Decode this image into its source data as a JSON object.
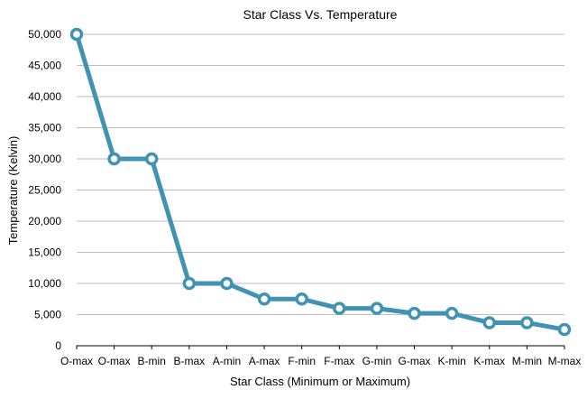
{
  "chart_data": {
    "type": "line",
    "title": "Star Class Vs. Temperature",
    "xlabel": "Star Class (Minimum or Maximum)",
    "ylabel": "Temperature (Kelvin)",
    "categories": [
      "O-max",
      "O-max",
      "B-min",
      "B-max",
      "A-min",
      "A-max",
      "F-min",
      "F-max",
      "G-min",
      "G-max",
      "K-min",
      "K-max",
      "M-min",
      "M-max"
    ],
    "series": [
      {
        "values": [
          50000,
          30000,
          30000,
          10000,
          10000,
          7500,
          7500,
          6000,
          6000,
          5200,
          5200,
          3700,
          3700,
          2600
        ],
        "color": "#4292b4"
      }
    ],
    "ylim": [
      0,
      50000
    ],
    "yticks": [
      0,
      5000,
      10000,
      15000,
      20000,
      25000,
      30000,
      35000,
      40000,
      45000,
      50000
    ],
    "ytick_labels": [
      "0",
      "5,000",
      "10,000",
      "15,000",
      "20,000",
      "25,000",
      "30,000",
      "35,000",
      "40,000",
      "45,000",
      "50,000"
    ],
    "grid": true,
    "legend": "none"
  }
}
